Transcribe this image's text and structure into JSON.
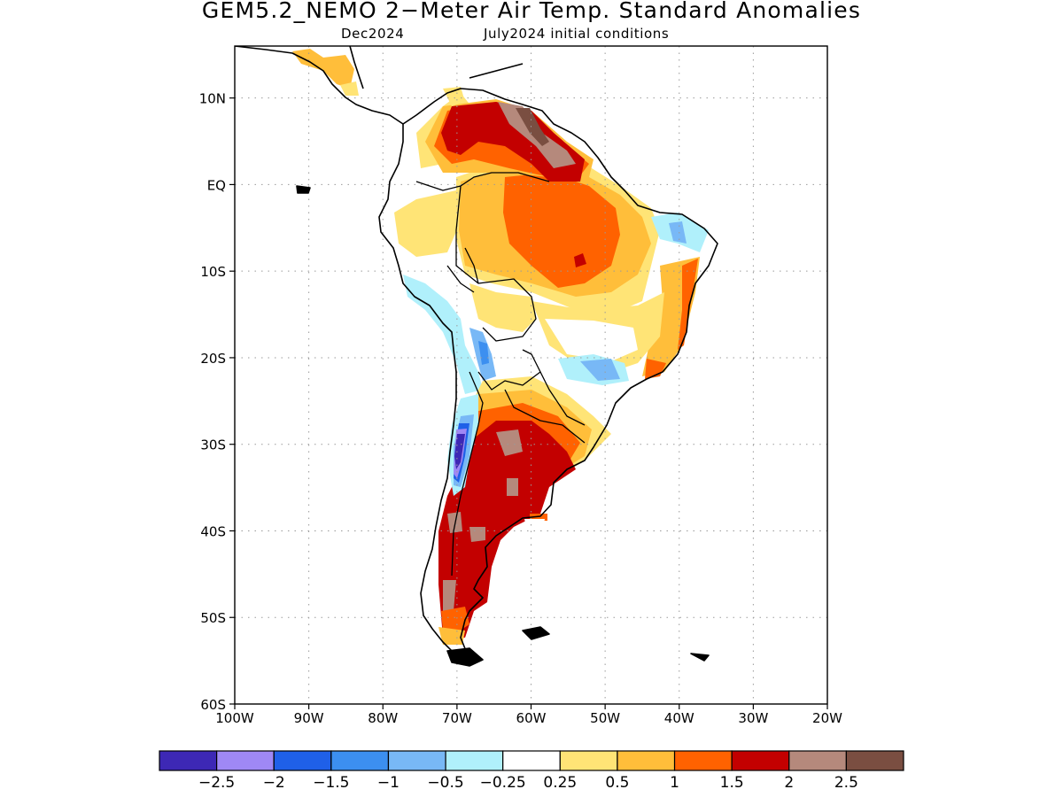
{
  "title": "GEM5.2_NEMO 2−Meter Air Temp. Standard Anomalies",
  "subtitle_month": "Dec2024",
  "subtitle_init": "July2024 initial conditions",
  "lat_ticks": [
    {
      "lat": 10,
      "label": "10N"
    },
    {
      "lat": 0,
      "label": "EQ"
    },
    {
      "lat": -10,
      "label": "10S"
    },
    {
      "lat": -20,
      "label": "20S"
    },
    {
      "lat": -30,
      "label": "30S"
    },
    {
      "lat": -40,
      "label": "40S"
    },
    {
      "lat": -50,
      "label": "50S"
    },
    {
      "lat": -60,
      "label": "60S"
    }
  ],
  "lon_ticks": [
    {
      "lon": -100,
      "label": "100W"
    },
    {
      "lon": -90,
      "label": "90W"
    },
    {
      "lon": -80,
      "label": "80W"
    },
    {
      "lon": -70,
      "label": "70W"
    },
    {
      "lon": -60,
      "label": "60W"
    },
    {
      "lon": -50,
      "label": "50W"
    },
    {
      "lon": -40,
      "label": "40W"
    },
    {
      "lon": -30,
      "label": "30W"
    },
    {
      "lon": -20,
      "label": "20W"
    }
  ],
  "colorbar": {
    "colors": [
      "#3d28b5",
      "#9f88f5",
      "#1f60e8",
      "#3c8ff0",
      "#78b8f6",
      "#b0f0fb",
      "#ffffff",
      "#ffe476",
      "#ffbe3a",
      "#ff6200",
      "#c30000",
      "#b5897c",
      "#7a4e41"
    ],
    "labels": [
      "−2.5",
      "−2",
      "−1.5",
      "−1",
      "−0.5",
      "−0.25",
      "0.25",
      "0.5",
      "1",
      "1.5",
      "2",
      "2.5"
    ]
  },
  "map": {
    "lon_range": [
      -100,
      -20
    ],
    "lat_range": [
      -60,
      16
    ],
    "grid": "dotted",
    "land_outline_color": "#000000"
  }
}
